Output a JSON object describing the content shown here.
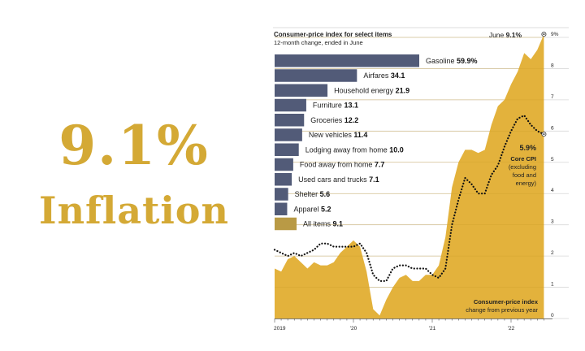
{
  "headline": {
    "value": "9.1%",
    "label": "Inflation"
  },
  "colors": {
    "gold": "#d4a935",
    "area": "#e3b23c",
    "bar": "#525b78",
    "all_items_bar": "#b99a45",
    "core_line": "#111111"
  },
  "chart_data": [
    {
      "type": "bar",
      "orientation": "horizontal",
      "title": "Consumer-price index for select items",
      "subtitle": "12-month change, ended in June",
      "categories": [
        "Gasoline",
        "Airfares",
        "Household energy",
        "Furniture",
        "Groceries",
        "New vehicles",
        "Lodging away from home",
        "Food away from home",
        "Used cars and trucks",
        "Shelter",
        "Apparel",
        "All items"
      ],
      "values": [
        59.9,
        34.1,
        21.9,
        13.1,
        12.2,
        11.4,
        10.0,
        7.7,
        7.1,
        5.6,
        5.2,
        9.1
      ],
      "value_labels": [
        "59.9%",
        "34.1",
        "21.9",
        "13.1",
        "12.2",
        "11.4",
        "10.0",
        "7.7",
        "7.1",
        "5.6",
        "5.2",
        "9.1"
      ],
      "highlight": "All items"
    },
    {
      "type": "area",
      "annotation_top": {
        "prefix": "June",
        "value": "9.1%"
      },
      "series": [
        {
          "name": "Consumer-price index",
          "description": "change from previous year",
          "style": "area",
          "values": [
            1.6,
            1.5,
            1.9,
            2.0,
            1.8,
            1.6,
            1.8,
            1.7,
            1.7,
            1.8,
            2.1,
            2.3,
            2.5,
            2.3,
            1.5,
            0.3,
            0.1,
            0.6,
            1.0,
            1.3,
            1.4,
            1.2,
            1.2,
            1.4,
            1.4,
            1.7,
            2.6,
            4.2,
            5.0,
            5.4,
            5.4,
            5.3,
            5.4,
            6.2,
            6.8,
            7.0,
            7.5,
            7.9,
            8.5,
            8.3,
            8.6,
            9.1
          ]
        },
        {
          "name": "Core CPI",
          "description": "(excluding food and energy)",
          "end_label": "5.9%",
          "style": "dotted",
          "values": [
            2.2,
            2.1,
            2.0,
            2.1,
            2.0,
            2.1,
            2.2,
            2.4,
            2.4,
            2.3,
            2.3,
            2.3,
            2.3,
            2.4,
            2.1,
            1.4,
            1.2,
            1.2,
            1.6,
            1.7,
            1.7,
            1.6,
            1.6,
            1.6,
            1.4,
            1.3,
            1.6,
            3.0,
            3.8,
            4.5,
            4.3,
            4.0,
            4.0,
            4.6,
            4.9,
            5.5,
            6.0,
            6.4,
            6.5,
            6.2,
            6.0,
            5.9
          ]
        }
      ],
      "x_start": "2019-01",
      "x_end": "2022-06",
      "x_ticks": [
        "2019",
        "'20",
        "'21",
        "'22"
      ],
      "y_ticks": [
        "0",
        "1",
        "2",
        "3",
        "4",
        "5",
        "6",
        "7",
        "8",
        "9%"
      ],
      "ylim": [
        0,
        9
      ],
      "grid": true
    }
  ]
}
